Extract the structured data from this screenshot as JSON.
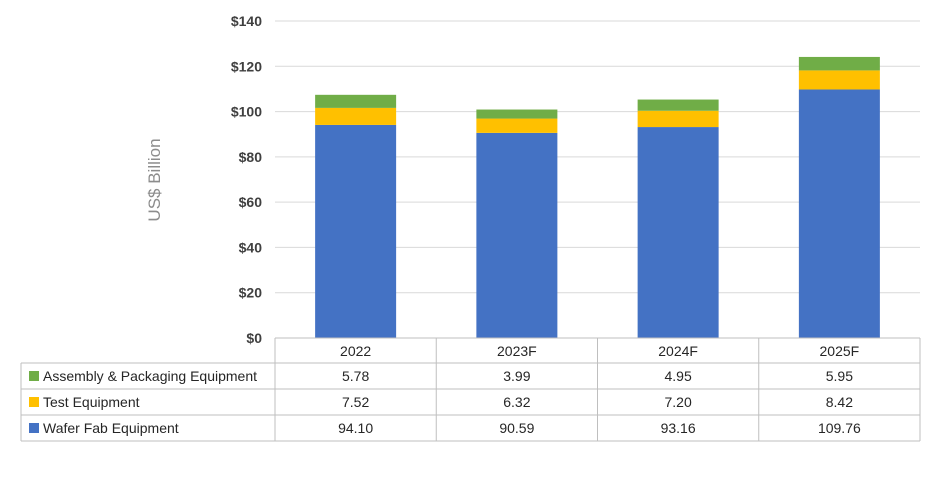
{
  "chart_data": {
    "type": "bar",
    "stacked": true,
    "ylabel": "US$ Billion",
    "ylim": [
      0,
      140
    ],
    "yticks": [
      "$0",
      "$20",
      "$40",
      "$60",
      "$80",
      "$100",
      "$120",
      "$140"
    ],
    "ytick_values": [
      0,
      20,
      40,
      60,
      80,
      100,
      120,
      140
    ],
    "grid": true,
    "categories": [
      "2022",
      "2023F",
      "2024F",
      "2025F"
    ],
    "series": [
      {
        "name": "Wafer Fab Equipment",
        "color": "#4472c4",
        "values": [
          94.1,
          90.59,
          93.16,
          109.76
        ],
        "labels": [
          "94.10",
          "90.59",
          "93.16",
          "109.76"
        ]
      },
      {
        "name": "Test Equipment",
        "color": "#ffc000",
        "values": [
          7.52,
          6.32,
          7.2,
          8.42
        ],
        "labels": [
          "7.52",
          "6.32",
          "7.20",
          "8.42"
        ]
      },
      {
        "name": "Assembly & Packaging Equipment",
        "color": "#70ad47",
        "values": [
          5.78,
          3.99,
          4.95,
          5.95
        ],
        "labels": [
          "5.78",
          "3.99",
          "4.95",
          "5.95"
        ]
      }
    ],
    "data_table": true
  }
}
